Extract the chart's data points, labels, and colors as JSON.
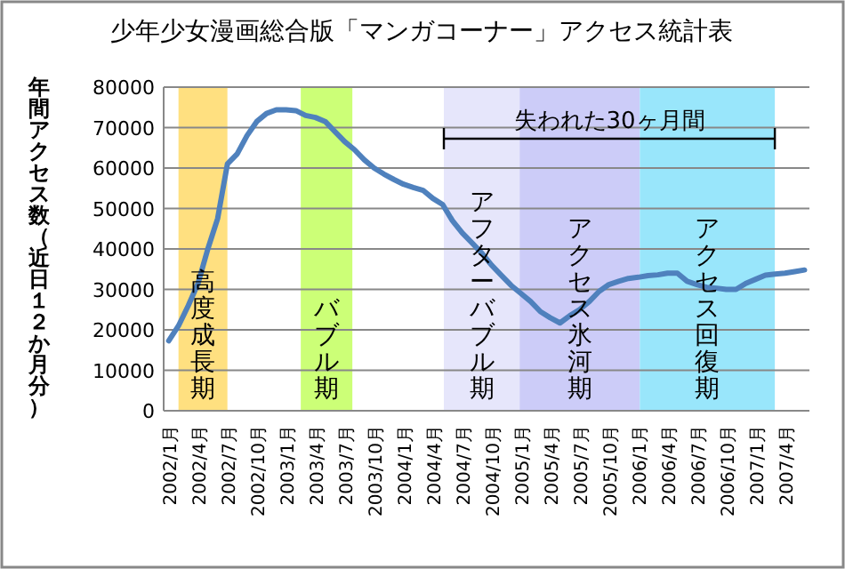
{
  "chart_data": {
    "type": "line",
    "title": "少年少女漫画総合版「マンガコーナー」アクセス統計表",
    "ylabel": "年間アクセス数（近日１２か月分）",
    "x": [
      "2002-01",
      "2002-02",
      "2002-03",
      "2002-04",
      "2002-05",
      "2002-06",
      "2002-07",
      "2002-08",
      "2002-09",
      "2002-10",
      "2002-11",
      "2002-12",
      "2003-01",
      "2003-02",
      "2003-03",
      "2003-04",
      "2003-05",
      "2003-06",
      "2003-07",
      "2003-08",
      "2003-09",
      "2003-10",
      "2003-11",
      "2003-12",
      "2004-01",
      "2004-02",
      "2004-03",
      "2004-04",
      "2004-05",
      "2004-06",
      "2004-07",
      "2004-08",
      "2004-09",
      "2004-10",
      "2004-11",
      "2004-12",
      "2005-01",
      "2005-02",
      "2005-03",
      "2005-04",
      "2005-05",
      "2005-06",
      "2005-07",
      "2005-08",
      "2005-09",
      "2005-10",
      "2005-11",
      "2005-12",
      "2006-01",
      "2006-02",
      "2006-03",
      "2006-04",
      "2006-05",
      "2006-06",
      "2006-07",
      "2006-08",
      "2006-09",
      "2006-10",
      "2006-11",
      "2006-12",
      "2007-01",
      "2007-02",
      "2007-03",
      "2007-04",
      "2007-05",
      "2007-06"
    ],
    "series": [
      {
        "color": "#4f81bd",
        "values": [
          17300,
          21000,
          26000,
          31500,
          40000,
          47500,
          61000,
          63500,
          68000,
          71500,
          73500,
          74400,
          74400,
          74200,
          73000,
          72500,
          71500,
          69000,
          66500,
          64500,
          62000,
          60000,
          58500,
          57200,
          56000,
          55200,
          54500,
          52500,
          51000,
          47000,
          44000,
          41500,
          39000,
          36000,
          33500,
          31000,
          29000,
          27000,
          24500,
          23000,
          21700,
          23500,
          25000,
          27000,
          29500,
          31200,
          32000,
          32700,
          33000,
          33400,
          33600,
          34000,
          34000,
          32000,
          31200,
          30500,
          30300,
          30000,
          30000,
          31500,
          32500,
          33500,
          33800,
          34000,
          34400,
          34800
        ]
      }
    ],
    "xlim": [
      "2001-12-16",
      "2007-06-16"
    ],
    "xticks": [
      {
        "value": "2002-01",
        "label": "2002/1月"
      },
      {
        "value": "2002-04",
        "label": "2002/4月"
      },
      {
        "value": "2002-07",
        "label": "2002/7月"
      },
      {
        "value": "2002-10",
        "label": "2002/10月"
      },
      {
        "value": "2003-01",
        "label": "2003/1月"
      },
      {
        "value": "2003-04",
        "label": "2003/4月"
      },
      {
        "value": "2003-07",
        "label": "2003/7月"
      },
      {
        "value": "2003-10",
        "label": "2003/10月"
      },
      {
        "value": "2004-01",
        "label": "2004/1月"
      },
      {
        "value": "2004-04",
        "label": "2004/4月"
      },
      {
        "value": "2004-07",
        "label": "2004/7月"
      },
      {
        "value": "2004-10",
        "label": "2004/10月"
      },
      {
        "value": "2005-01",
        "label": "2005/1月"
      },
      {
        "value": "2005-04",
        "label": "2005/4月"
      },
      {
        "value": "2005-07",
        "label": "2005/7月"
      },
      {
        "value": "2005-10",
        "label": "2005/10月"
      },
      {
        "value": "2006-01",
        "label": "2006/1月"
      },
      {
        "value": "2006-04",
        "label": "2006/4月"
      },
      {
        "value": "2006-07",
        "label": "2006/7月"
      },
      {
        "value": "2006-10",
        "label": "2006/10月"
      },
      {
        "value": "2007-01",
        "label": "2007/1月"
      },
      {
        "value": "2007-04",
        "label": "2007/4月"
      }
    ],
    "ylim": [
      0,
      80000
    ],
    "yticks": [
      0,
      10000,
      20000,
      30000,
      40000,
      50000,
      60000,
      70000,
      80000
    ],
    "grid": "y",
    "marker": "none",
    "line_style": "solid",
    "bands": [
      {
        "axis": "x",
        "from": "2002-02-01",
        "to": "2002-07-01",
        "label": "高度成長期",
        "color": "#ffe080"
      },
      {
        "axis": "x",
        "from": "2003-02-15",
        "to": "2003-07-25",
        "label": "バブル期",
        "color": "#ccff77"
      },
      {
        "axis": "x",
        "from": "2004-05-05",
        "to": "2004-12-28",
        "label": "アフターバブル期",
        "color": "#e6e6fb"
      },
      {
        "axis": "x",
        "from": "2004-12-28",
        "to": "2006-01-06",
        "label": "アクセス氷河期",
        "color": "#ccccf8"
      },
      {
        "axis": "x",
        "from": "2006-01-06",
        "to": "2007-02-28",
        "label": "アクセス回復期",
        "color": "#99e6fb"
      }
    ],
    "annotations": [
      "失われた30ヶ月間"
    ]
  }
}
